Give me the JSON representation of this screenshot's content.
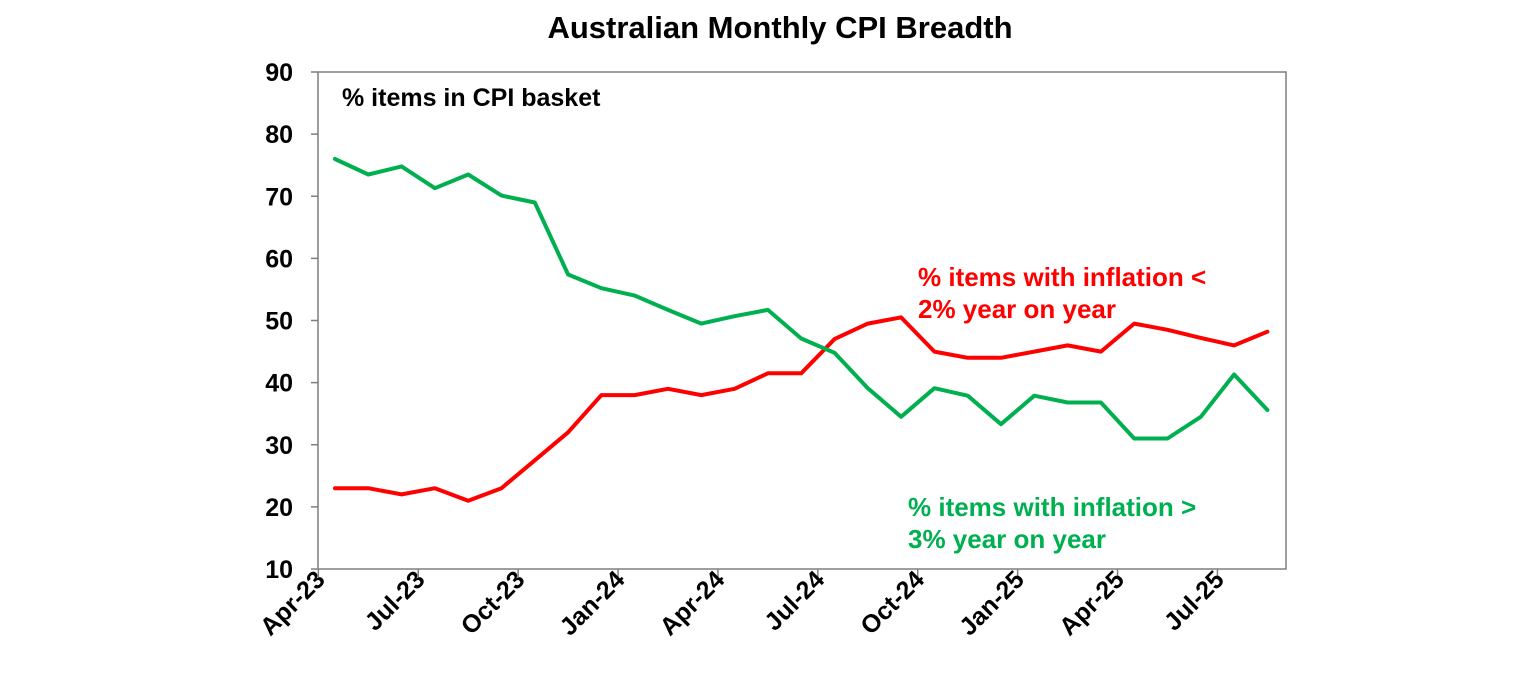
{
  "chart_data": {
    "type": "line",
    "title": "Australian Monthly CPI Breadth",
    "ylabel": "% items in CPI basket",
    "xlabel": "",
    "ylim": [
      10,
      90
    ],
    "yticks": [
      10,
      20,
      30,
      40,
      50,
      60,
      70,
      80,
      90
    ],
    "grid": false,
    "x": [
      "Apr-23",
      "May-23",
      "Jun-23",
      "Jul-23",
      "Aug-23",
      "Sep-23",
      "Oct-23",
      "Nov-23",
      "Dec-23",
      "Jan-24",
      "Feb-24",
      "Mar-24",
      "Apr-24",
      "May-24",
      "Jun-24",
      "Jul-24",
      "Aug-24",
      "Sep-24",
      "Oct-24",
      "Nov-24",
      "Dec-24",
      "Jan-25",
      "Feb-25",
      "Mar-25",
      "Apr-25",
      "May-25",
      "Jun-25",
      "Jul-25",
      "Aug-25"
    ],
    "xtick_labels": [
      "Apr-23",
      "Jul-23",
      "Oct-23",
      "Jan-24",
      "Apr-24",
      "Jul-24",
      "Oct-24",
      "Jan-25",
      "Apr-25",
      "Jul-25"
    ],
    "series": [
      {
        "name": "% items with inflation < 2% year on year",
        "label_lines": [
          "% items with inflation <",
          "2% year on year"
        ],
        "color": "#ff0000",
        "values": [
          23,
          23,
          22,
          23,
          21,
          23,
          27.5,
          32,
          38,
          38,
          39,
          38,
          39,
          41.5,
          41.5,
          47,
          49.5,
          50.5,
          45,
          44,
          44,
          45,
          46,
          45,
          49.5,
          48.5,
          47.2,
          46,
          48.2
        ]
      },
      {
        "name": "% items with inflation > 3% year on year",
        "label_lines": [
          "% items with inflation >",
          "3% year on year"
        ],
        "color": "#00b050",
        "values": [
          76,
          73.5,
          74.8,
          71.3,
          73.5,
          70.1,
          69,
          57.4,
          55.2,
          54,
          51.7,
          49.5,
          50.7,
          51.7,
          47.1,
          44.8,
          39.1,
          34.5,
          39.1,
          37.9,
          33.3,
          37.9,
          36.8,
          36.8,
          31,
          31,
          34.5,
          41.3,
          35.6
        ]
      }
    ]
  }
}
